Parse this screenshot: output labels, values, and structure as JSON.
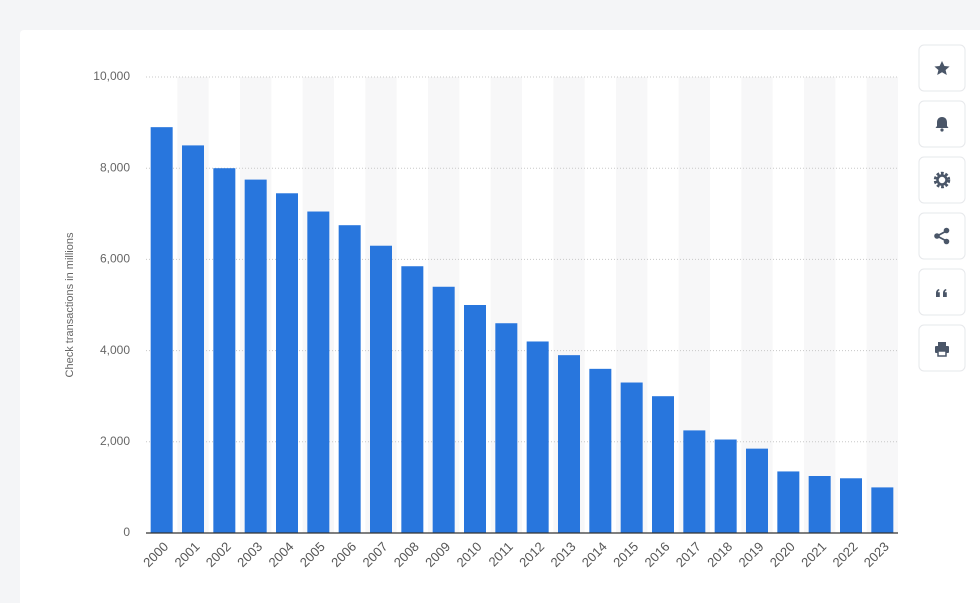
{
  "chart_data": {
    "type": "bar",
    "y_label": "Check transactions in millions",
    "categories": [
      "2000",
      "2001",
      "2002",
      "2003",
      "2004",
      "2005",
      "2006",
      "2007",
      "2008",
      "2009",
      "2010",
      "2011",
      "2012",
      "2013",
      "2014",
      "2015",
      "2016",
      "2017",
      "2018",
      "2019",
      "2020",
      "2021",
      "2022",
      "2023"
    ],
    "values": [
      8900,
      8500,
      8000,
      7750,
      7450,
      7050,
      6750,
      6300,
      5850,
      5400,
      5000,
      4600,
      4200,
      3900,
      3600,
      3300,
      3000,
      2250,
      2050,
      1850,
      1350,
      1250,
      1200,
      1000
    ],
    "color": "#2876dd",
    "ylim": [
      0,
      10000
    ],
    "yticks": [
      0,
      {
        "value": 2000,
        "label": "2,000"
      },
      {
        "value": 4000,
        "label": "4,000"
      },
      {
        "value": 6000,
        "label": "6,000"
      },
      {
        "value": 8000,
        "label": "8,000"
      },
      {
        "value": 10000,
        "label": "10,000"
      }
    ],
    "grid": true
  }
}
